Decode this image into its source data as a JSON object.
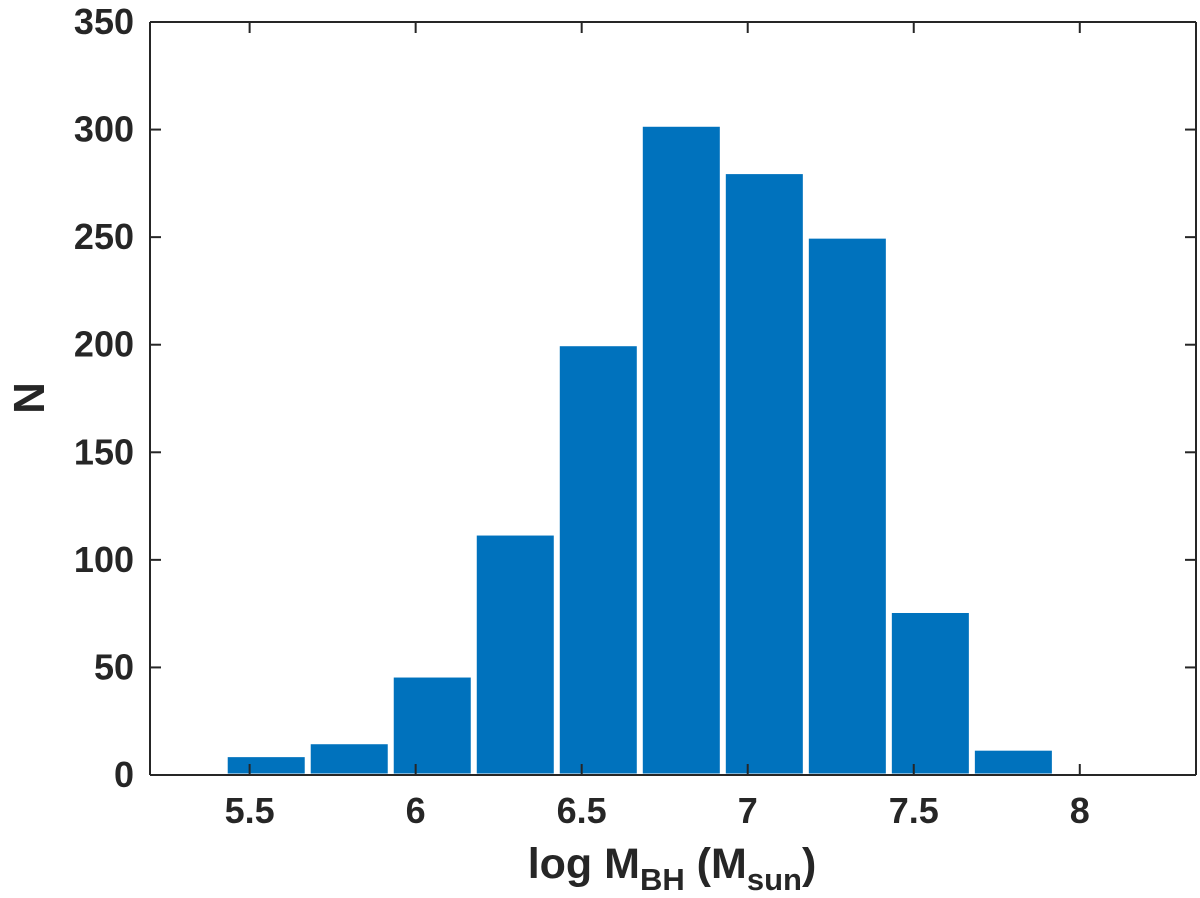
{
  "chart_data": {
    "type": "bar",
    "subtype": "histogram",
    "bar_color": "#0072BD",
    "axis_color": "#262626",
    "background": "#ffffff",
    "xlabel": {
      "main": "log M",
      "sub": "BH",
      "paren_open": " (M",
      "paren_sub": "sun",
      "paren_close": ")"
    },
    "ylabel": "N",
    "xlim": [
      5.2,
      8.35
    ],
    "ylim": [
      0,
      350
    ],
    "xticks": [
      5.5,
      6,
      6.5,
      7,
      7.5,
      8
    ],
    "xtick_labels": [
      "5.5",
      "6",
      "6.5",
      "7",
      "7.5",
      "8"
    ],
    "yticks": [
      0,
      50,
      100,
      150,
      200,
      250,
      300,
      350
    ],
    "ytick_labels": [
      "0",
      "50",
      "100",
      "150",
      "200",
      "250",
      "300",
      "350"
    ],
    "bin_width": 0.25,
    "bins": [
      {
        "center": 5.55,
        "value": 9
      },
      {
        "center": 5.8,
        "value": 15
      },
      {
        "center": 6.05,
        "value": 46
      },
      {
        "center": 6.3,
        "value": 112
      },
      {
        "center": 6.55,
        "value": 200
      },
      {
        "center": 6.8,
        "value": 302
      },
      {
        "center": 7.05,
        "value": 280
      },
      {
        "center": 7.3,
        "value": 250
      },
      {
        "center": 7.55,
        "value": 76
      },
      {
        "center": 7.8,
        "value": 12
      }
    ],
    "grid": false,
    "legend": false
  }
}
